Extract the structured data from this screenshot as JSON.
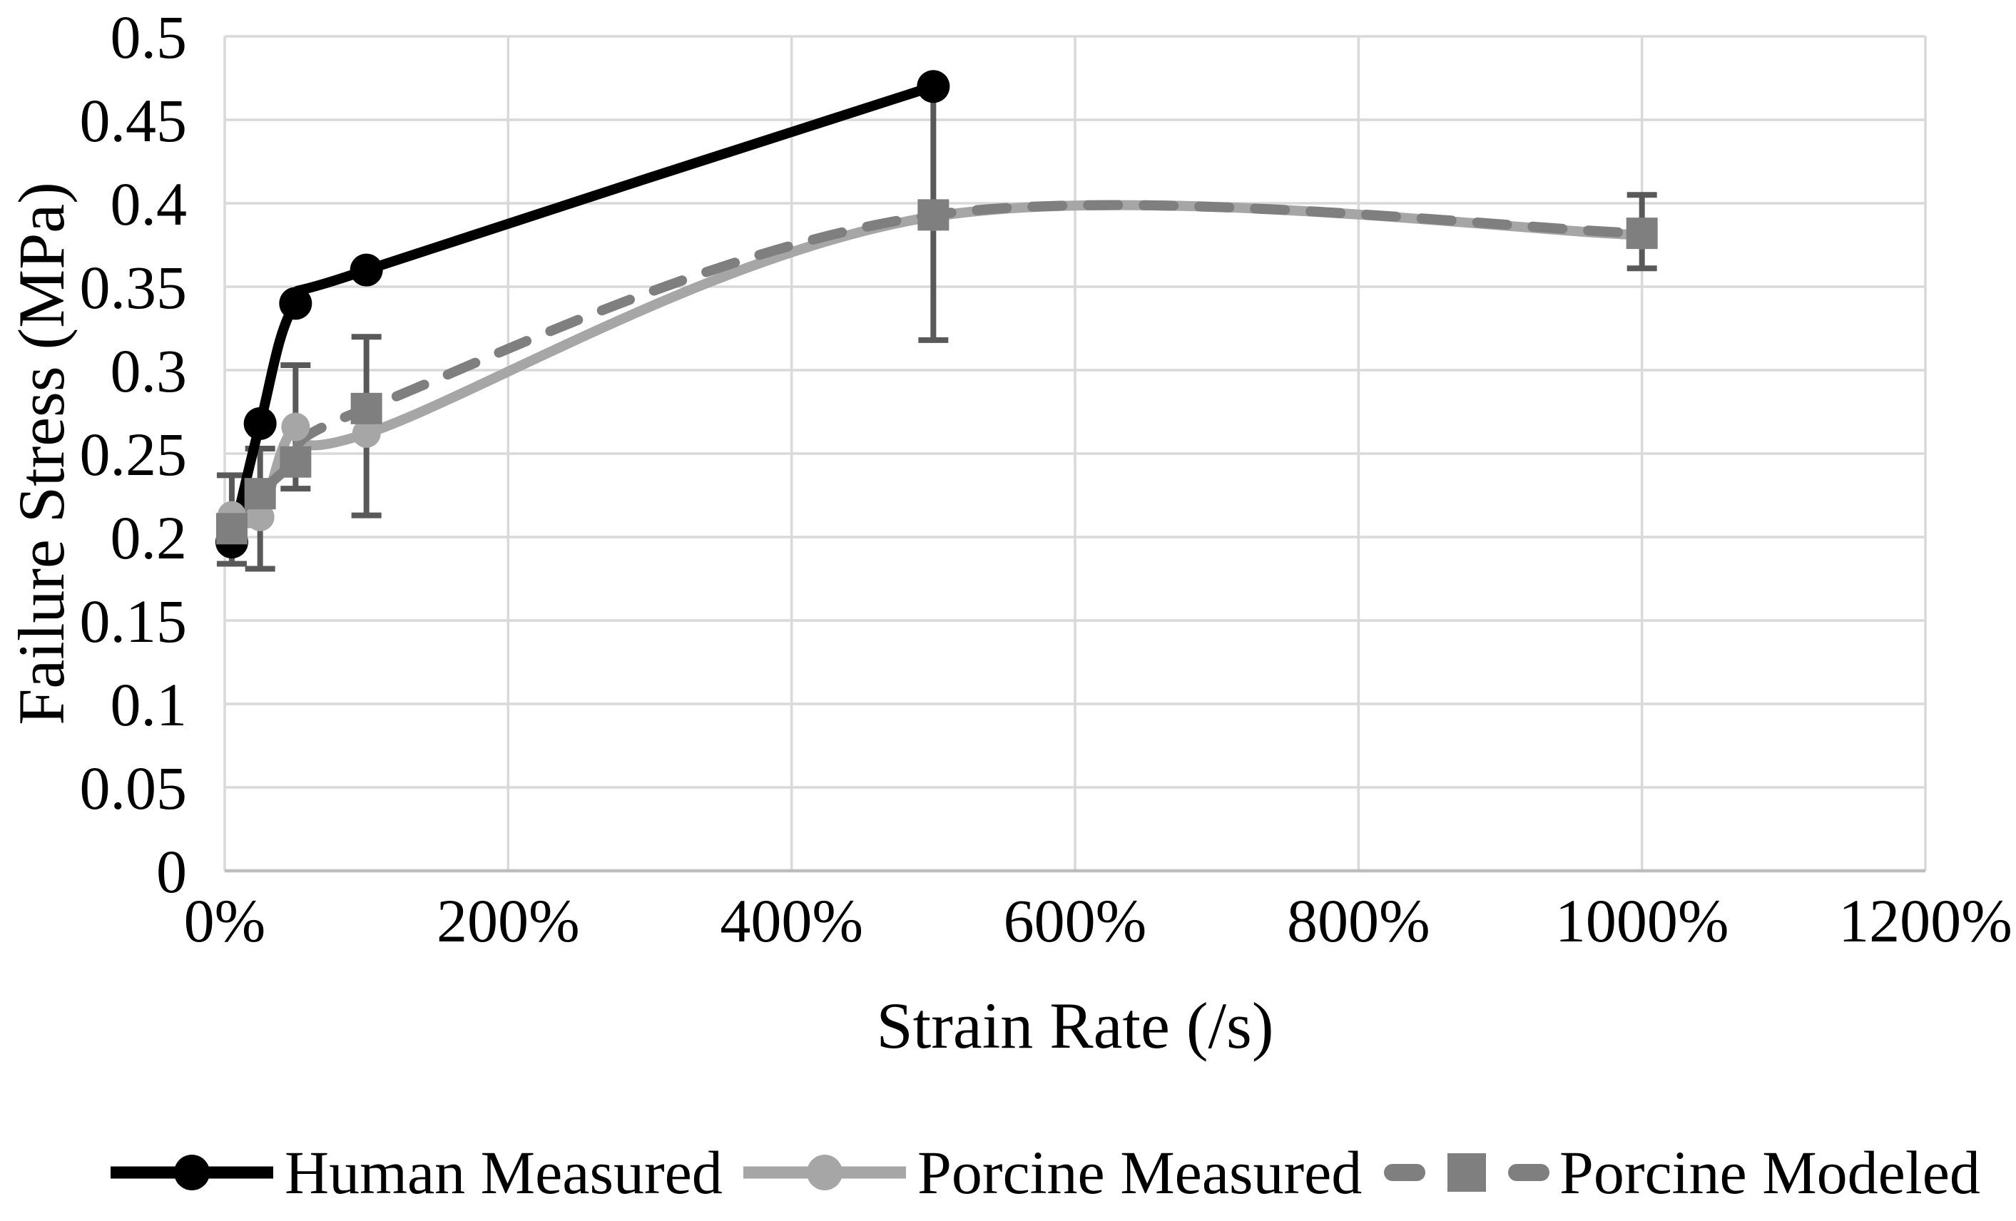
{
  "axes": {
    "x_title": "Strain Rate (/s)",
    "y_title": "Failure Stress (MPa)",
    "x_tick_labels": [
      "0%",
      "200%",
      "400%",
      "600%",
      "800%",
      "1000%",
      "1200%"
    ],
    "y_tick_labels": [
      "0",
      "0.05",
      "0.1",
      "0.15",
      "0.2",
      "0.25",
      "0.3",
      "0.35",
      "0.4",
      "0.45",
      "0.5"
    ]
  },
  "legend": {
    "entries": [
      {
        "label": "Human Measured",
        "color": "#000000",
        "marker": "circle",
        "line_style": "solid"
      },
      {
        "label": "Porcine Measured",
        "color": "#a6a6a6",
        "marker": "circle",
        "line_style": "solid"
      },
      {
        "label": "Porcine Modeled",
        "color": "#7f7f7f",
        "marker": "square",
        "line_style": "dashed"
      }
    ]
  },
  "chart_data": {
    "type": "line",
    "title": "",
    "xlabel": "Strain Rate (/s)",
    "ylabel": "Failure Stress (MPa)",
    "xlim": [
      0,
      1200
    ],
    "ylim": [
      0,
      0.5
    ],
    "x_tick_values": [
      0,
      200,
      400,
      600,
      800,
      1000,
      1200
    ],
    "y_tick_values": [
      0,
      0.05,
      0.1,
      0.15,
      0.2,
      0.25,
      0.3,
      0.35,
      0.4,
      0.45,
      0.5
    ],
    "grid": true,
    "line_smoothing": true,
    "legend_position": "bottom",
    "series": [
      {
        "name": "Human Measured",
        "color": "#000000",
        "line_style": "solid",
        "marker": "circle",
        "x": [
          5,
          25,
          50,
          100,
          500
        ],
        "y": [
          0.197,
          0.268,
          0.34,
          0.36,
          0.47
        ]
      },
      {
        "name": "Porcine Measured",
        "color": "#a6a6a6",
        "line_style": "solid",
        "marker": "circle",
        "x": [
          5,
          25,
          50,
          100,
          500,
          1000
        ],
        "y": [
          0.213,
          0.212,
          0.266,
          0.262,
          0.392,
          0.381
        ]
      },
      {
        "name": "Porcine Modeled",
        "color": "#7f7f7f",
        "line_style": "dashed",
        "marker": "square",
        "x": [
          5,
          25,
          50,
          100,
          500,
          1000
        ],
        "y": [
          0.205,
          0.226,
          0.245,
          0.277,
          0.393,
          0.382
        ]
      }
    ],
    "error_bars": {
      "color": "#595959",
      "x": [
        5,
        25,
        50,
        100,
        500,
        1000
      ],
      "y_low": [
        0.184,
        0.181,
        0.229,
        0.213,
        0.318,
        0.361
      ],
      "y_high": [
        0.237,
        0.253,
        0.303,
        0.32,
        0.472,
        0.405
      ]
    }
  },
  "style_colors": {
    "gridline": "#d9d9d9",
    "axis_line": "#bdbdbd",
    "text": "#000000",
    "background": "#ffffff"
  }
}
